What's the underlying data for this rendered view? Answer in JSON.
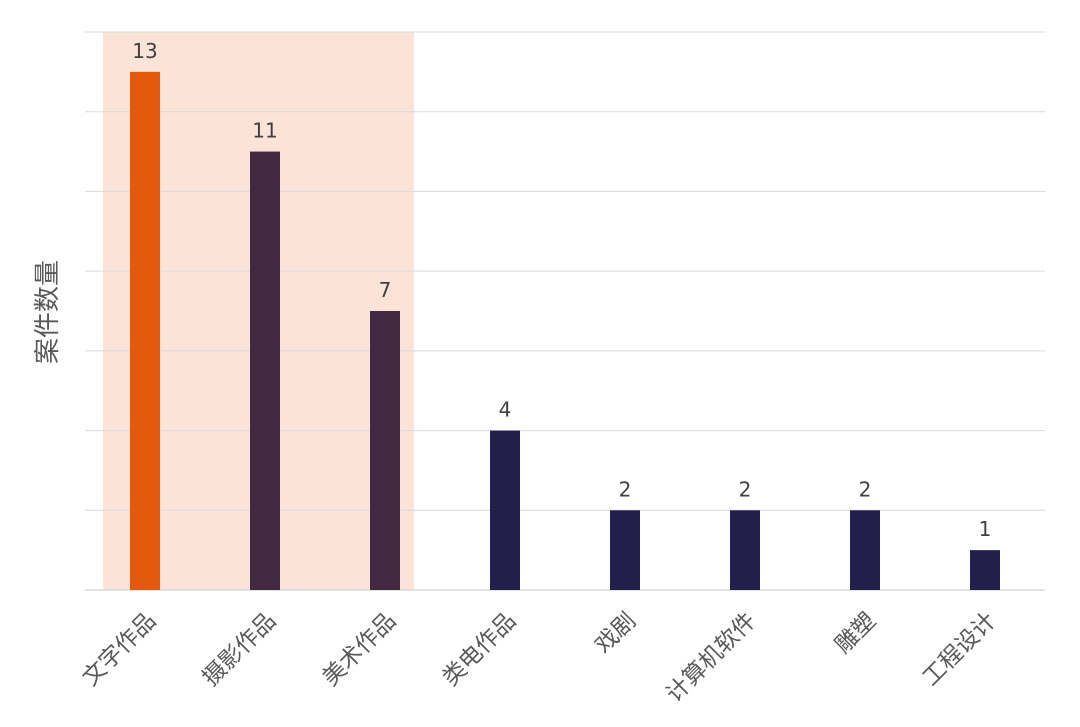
{
  "chart_data": {
    "type": "bar",
    "ylabel": "案件数量",
    "categories": [
      "文字作品",
      "摄影作品",
      "美术作品",
      "类电作品",
      "戏剧",
      "计算机软件",
      "雕塑",
      "工程设计"
    ],
    "values": [
      13,
      11,
      7,
      4,
      2,
      2,
      2,
      1
    ],
    "ylim": [
      0,
      14
    ],
    "grid": true,
    "highlight_band_categories": [
      "文字作品",
      "摄影作品",
      "美术作品"
    ],
    "colors": {
      "highlight_bar": "#E35A0E",
      "band_bars": "#432841",
      "other_bars": "#22204B",
      "band_fill": "#FCE3D8",
      "grid": "#D9D9D9",
      "axis_text": "#595959",
      "value_text": "#404040"
    }
  }
}
